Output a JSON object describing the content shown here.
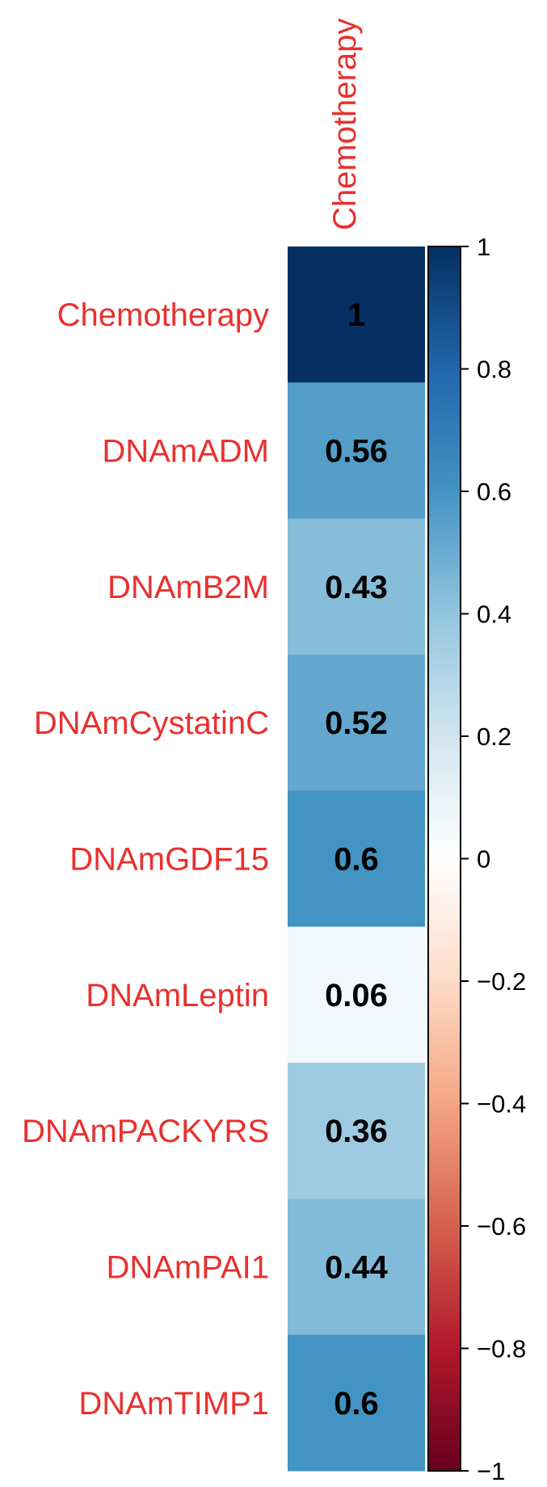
{
  "chart_data": {
    "type": "heatmap",
    "title": "",
    "column_labels": [
      "Chemotherapy"
    ],
    "row_labels": [
      "Chemotherapy",
      "DNAmADM",
      "DNAmB2M",
      "DNAmCystatinC",
      "DNAmGDF15",
      "DNAmLeptin",
      "DNAmPACKYRS",
      "DNAmPAI1",
      "DNAmTIMP1"
    ],
    "values": [
      1,
      0.56,
      0.43,
      0.52,
      0.6,
      0.06,
      0.36,
      0.44,
      0.6
    ],
    "value_labels": [
      "1",
      "0.56",
      "0.43",
      "0.52",
      "0.6",
      "0.06",
      "0.36",
      "0.44",
      "0.6"
    ],
    "colorbar": {
      "range": [
        -1,
        1
      ],
      "ticks": [
        1,
        0.8,
        0.6,
        0.4,
        0.2,
        0,
        -0.2,
        -0.4,
        -0.6,
        -0.8,
        -1
      ],
      "tick_labels": [
        "1",
        "0.8",
        "0.6",
        "0.4",
        "0.2",
        "0",
        "−0.2",
        "−0.4",
        "−0.6",
        "−0.8",
        "−1"
      ],
      "colormap": [
        "#67001F",
        "#B2182B",
        "#D6604D",
        "#F4A582",
        "#FDDBC7",
        "#FFFFFF",
        "#D1E5F0",
        "#92C5DE",
        "#4393C3",
        "#2166AC",
        "#053061"
      ]
    },
    "label_color": "#E8312F",
    "text_color": "#000000"
  }
}
